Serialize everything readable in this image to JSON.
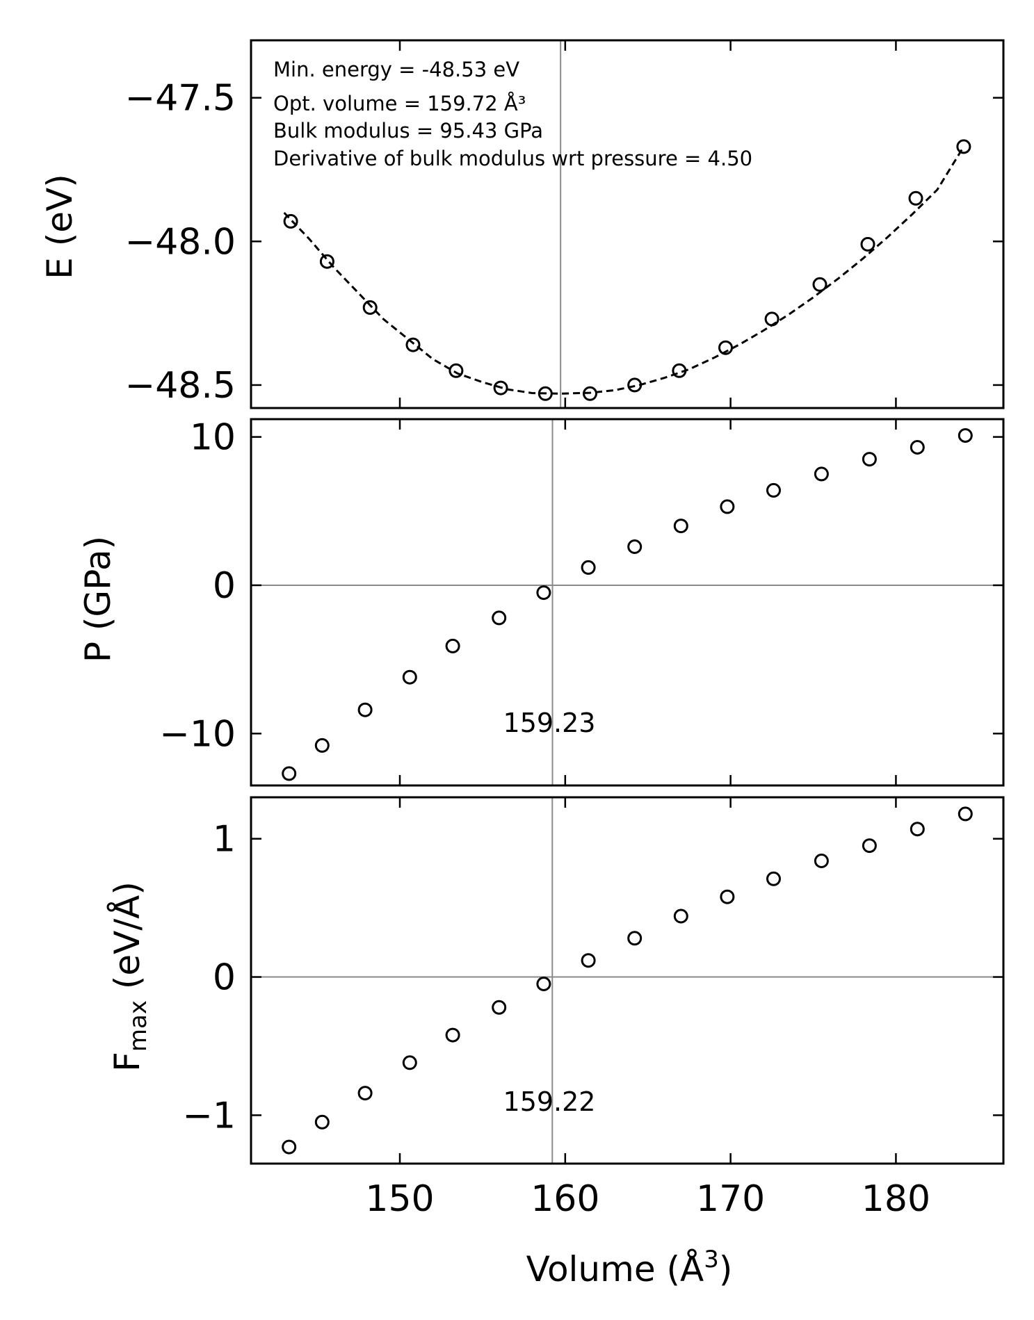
{
  "chart_data": [
    {
      "type": "scatter",
      "panel": "energy",
      "ylabel": "E (eV)",
      "xlim": [
        141,
        186.5
      ],
      "ylim": [
        -48.58,
        -47.3
      ],
      "yticks": [
        -47.5,
        -48.0,
        -48.5
      ],
      "ytick_labels": [
        "−47.5",
        "−48.0",
        "−48.5"
      ],
      "annotations": [
        "Min. energy = -48.53 eV",
        "Opt. volume = 159.72 Å³",
        "Bulk modulus = 95.43 GPa",
        "Derivative of bulk modulus wrt pressure = 4.50"
      ],
      "vline_x": 159.72,
      "series": [
        {
          "marker": "open-circle",
          "x": [
            143.4,
            145.6,
            148.2,
            150.8,
            153.4,
            156.1,
            158.8,
            161.5,
            164.2,
            166.9,
            169.7,
            172.5,
            175.4,
            178.3,
            181.2,
            184.1
          ],
          "y": [
            -47.93,
            -48.07,
            -48.23,
            -48.36,
            -48.45,
            -48.51,
            -48.53,
            -48.53,
            -48.5,
            -48.45,
            -48.37,
            -48.27,
            -48.15,
            -48.01,
            -47.85,
            -47.67
          ]
        }
      ],
      "fit": {
        "style": "dashed",
        "x": [
          143.0,
          144.5,
          146.0,
          147.5,
          149.0,
          150.5,
          152.0,
          153.5,
          155.0,
          156.5,
          158.0,
          159.72,
          161.5,
          163.0,
          164.5,
          166.0,
          167.5,
          169.0,
          170.5,
          172.0,
          173.5,
          175.0,
          176.5,
          178.0,
          179.5,
          181.0,
          182.5,
          184.1
        ],
        "y": [
          -47.9,
          -47.99,
          -48.09,
          -48.18,
          -48.27,
          -48.34,
          -48.41,
          -48.46,
          -48.49,
          -48.515,
          -48.528,
          -48.53,
          -48.527,
          -48.518,
          -48.5,
          -48.475,
          -48.445,
          -48.405,
          -48.36,
          -48.31,
          -48.255,
          -48.195,
          -48.13,
          -48.06,
          -47.985,
          -47.905,
          -47.82,
          -47.67
        ]
      }
    },
    {
      "type": "scatter",
      "panel": "pressure",
      "ylabel": "P (GPa)",
      "xlim": [
        141,
        186.5
      ],
      "ylim": [
        -13.5,
        11.2
      ],
      "yticks": [
        10,
        0,
        -10
      ],
      "ytick_labels": [
        "10",
        "0",
        "−10"
      ],
      "hline_y": 0,
      "vline_x": 159.23,
      "vline_label": "159.23",
      "series": [
        {
          "marker": "open-circle",
          "x": [
            143.3,
            145.3,
            147.9,
            150.6,
            153.2,
            156.0,
            158.7,
            161.4,
            164.2,
            167.0,
            169.8,
            172.6,
            175.5,
            178.4,
            181.3,
            184.2
          ],
          "y": [
            -12.7,
            -10.8,
            -8.4,
            -6.2,
            -4.1,
            -2.2,
            -0.5,
            1.2,
            2.6,
            4.0,
            5.3,
            6.4,
            7.5,
            8.5,
            9.3,
            10.1
          ]
        }
      ]
    },
    {
      "type": "scatter",
      "panel": "force",
      "ylabel": "F",
      "ylabel_sub": "max",
      "ylabel_rest": " (eV/Å)",
      "xlabel": "Volume (Å",
      "xlabel_sup": "3",
      "xlabel_end": ")",
      "xlim": [
        141,
        186.5
      ],
      "ylim": [
        -1.35,
        1.3
      ],
      "xticks": [
        150,
        160,
        170,
        180
      ],
      "xtick_labels": [
        "150",
        "160",
        "170",
        "180"
      ],
      "yticks": [
        1,
        0,
        -1
      ],
      "ytick_labels": [
        "1",
        "0",
        "−1"
      ],
      "hline_y": 0,
      "vline_x": 159.22,
      "vline_label": "159.22",
      "series": [
        {
          "marker": "open-circle",
          "x": [
            143.3,
            145.3,
            147.9,
            150.6,
            153.2,
            156.0,
            158.7,
            161.4,
            164.2,
            167.0,
            169.8,
            172.6,
            175.5,
            178.4,
            181.3,
            184.2
          ],
          "y": [
            -1.23,
            -1.05,
            -0.84,
            -0.62,
            -0.42,
            -0.22,
            -0.05,
            0.12,
            0.28,
            0.44,
            0.58,
            0.71,
            0.84,
            0.95,
            1.07,
            1.18
          ]
        }
      ]
    }
  ]
}
